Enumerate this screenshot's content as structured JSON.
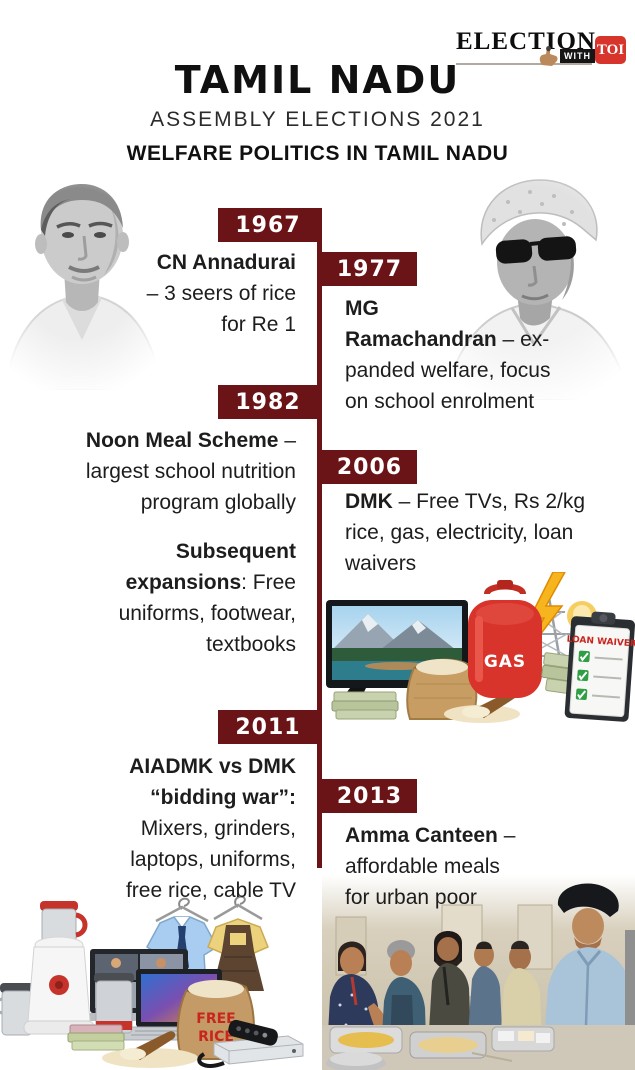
{
  "logo": {
    "election": "ELECTION",
    "with_label": "WITH",
    "toi": "TOI",
    "toi_red": "#d7342c"
  },
  "header": {
    "title": "TAMIL NADU",
    "subtitle": "ASSEMBLY ELECTIONS 2021",
    "section_heading": "WELFARE POLITICS IN TAMIL NADU"
  },
  "theme": {
    "maroon": "#6b1417",
    "text": "#1d1d1d",
    "background": "#ffffff"
  },
  "timeline": {
    "entries": [
      {
        "year": "1967",
        "side": "left",
        "rich": [
          {
            "t": "CN Annadurai",
            "b": true
          },
          {
            "br": true
          },
          {
            "t": "– 3 seers of rice"
          },
          {
            "br": true
          },
          {
            "t": "for Re 1"
          }
        ]
      },
      {
        "year": "1977",
        "side": "right",
        "rich": [
          {
            "t": "MG",
            "b": true
          },
          {
            "br": true
          },
          {
            "t": "Ramachandran",
            "b": true
          },
          {
            "t": " – ex-"
          },
          {
            "br": true
          },
          {
            "t": "panded welfare, focus"
          },
          {
            "br": true
          },
          {
            "t": "on school enrolment"
          }
        ]
      },
      {
        "year": "1982",
        "side": "left",
        "rich": [
          {
            "t": "Noon Meal Scheme",
            "b": true
          },
          {
            "t": " –"
          },
          {
            "br": true
          },
          {
            "t": "largest school nutrition"
          },
          {
            "br": true
          },
          {
            "t": "program globally"
          }
        ],
        "rich2": [
          {
            "t": "Subsequent",
            "b": true
          },
          {
            "br": true
          },
          {
            "t": "expansions",
            "b": true
          },
          {
            "t": ": Free"
          },
          {
            "br": true
          },
          {
            "t": "uniforms, footwear,"
          },
          {
            "br": true
          },
          {
            "t": "textbooks"
          }
        ]
      },
      {
        "year": "2006",
        "side": "right",
        "rich": [
          {
            "t": "DMK",
            "b": true
          },
          {
            "t": " – Free TVs, Rs 2/kg"
          },
          {
            "br": true
          },
          {
            "t": "rice, gas, electricity, loan"
          },
          {
            "br": true
          },
          {
            "t": "waivers"
          }
        ]
      },
      {
        "year": "2011",
        "side": "left",
        "rich": [
          {
            "t": "AIADMK vs DMK",
            "b": true
          },
          {
            "br": true
          },
          {
            "t": "“bidding war”:",
            "b": true
          },
          {
            "br": true
          },
          {
            "t": "Mixers, grinders,"
          },
          {
            "br": true
          },
          {
            "t": "laptops, uniforms,"
          },
          {
            "br": true
          },
          {
            "t": "free rice, cable TV"
          }
        ]
      },
      {
        "year": "2013",
        "side": "right",
        "rich": [
          {
            "t": "Amma Canteen",
            "b": true
          },
          {
            "t": " –"
          },
          {
            "br": true
          },
          {
            "t": "affordable meals"
          },
          {
            "br": true
          },
          {
            "t": "for urban poor"
          }
        ]
      }
    ]
  },
  "collage_labels": {
    "gas": "GAS",
    "loan_waiver": "LOAN WAIVER",
    "free": "FREE",
    "rice": "RICE"
  }
}
